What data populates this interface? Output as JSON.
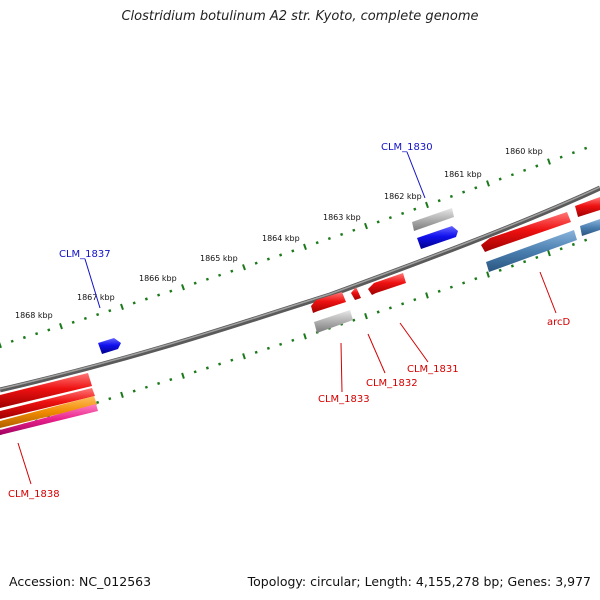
{
  "title": "Clostridium botulinum A2 str. Kyoto, complete genome",
  "footer": {
    "accession": "Accession: NC_012563",
    "summary": "Topology: circular; Length: 4,155,278 bp; Genes: 3,977"
  },
  "kbp_ticks": [
    "1860 kbp",
    "1861 kbp",
    "1862 kbp",
    "1863 kbp",
    "1864 kbp",
    "1865 kbp",
    "1866 kbp",
    "1867 kbp",
    "1868 kbp"
  ],
  "genes": [
    {
      "label": "CLM_1830",
      "color": "#1010c8"
    },
    {
      "label": "CLM_1831",
      "color": "#d40000"
    },
    {
      "label": "CLM_1832",
      "color": "#d40000"
    },
    {
      "label": "CLM_1833",
      "color": "#d40000"
    },
    {
      "label": "CLM_1837",
      "color": "#1010c8"
    },
    {
      "label": "CLM_1838",
      "color": "#d40000"
    },
    {
      "label": "arcD",
      "color": "#d40000"
    }
  ],
  "colors": {
    "backbone": "#777777",
    "tick": "#1a7a1a",
    "red_feature": "#ee1111",
    "blue_feature": "#1111ee",
    "grey_feature": "#b0b0b0",
    "steel_feature": "#4a7fb0",
    "orange_feature": "#f08a00",
    "pink_feature": "#e8208a"
  }
}
